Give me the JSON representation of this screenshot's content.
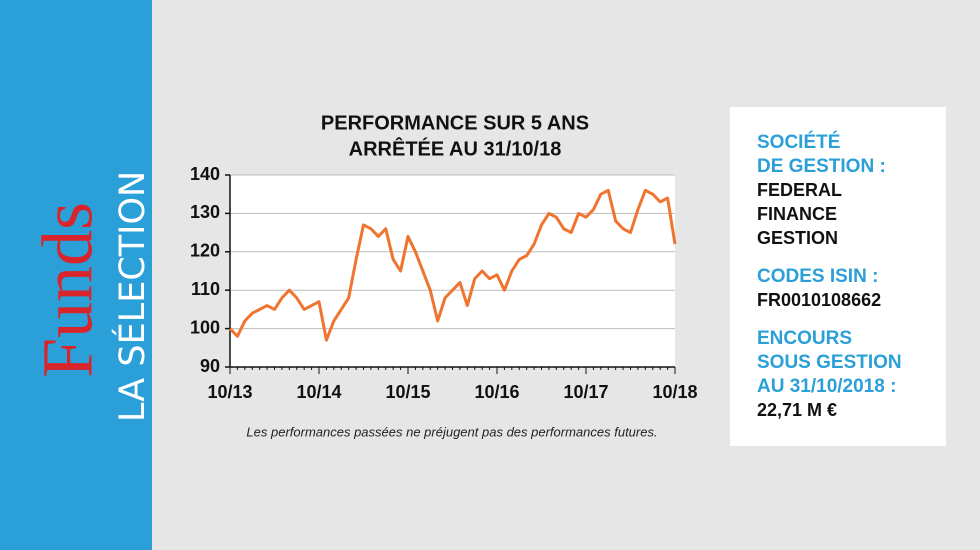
{
  "sidebar": {
    "brand": "Funds",
    "section": "LA SÉLECTION"
  },
  "chart_data": {
    "type": "line",
    "title": "PERFORMANCE SUR 5 ANS",
    "subtitle": "ARRÊTÉE AU 31/10/18",
    "note": "Les performances passées ne préjugent pas des performances futures.",
    "categories": [
      "10/13",
      null,
      null,
      null,
      null,
      null,
      null,
      null,
      null,
      null,
      null,
      null,
      "10/14",
      null,
      null,
      null,
      null,
      null,
      null,
      null,
      null,
      null,
      null,
      null,
      "10/15",
      null,
      null,
      null,
      null,
      null,
      null,
      null,
      null,
      null,
      null,
      null,
      "10/16",
      null,
      null,
      null,
      null,
      null,
      null,
      null,
      null,
      null,
      null,
      null,
      "10/17",
      null,
      null,
      null,
      null,
      null,
      null,
      null,
      null,
      null,
      null,
      null,
      "10/18"
    ],
    "series": [
      {
        "color": "#ef7430",
        "values": [
          100,
          98,
          102,
          104,
          105,
          106,
          105,
          108,
          110,
          108,
          105,
          106,
          107,
          97,
          102,
          105,
          108,
          118,
          127,
          126,
          124,
          126,
          118,
          115,
          124,
          120,
          115,
          110,
          102,
          108,
          110,
          112,
          106,
          113,
          115,
          113,
          114,
          110,
          115,
          118,
          119,
          122,
          127,
          130,
          129,
          126,
          125,
          130,
          129,
          131,
          135,
          136,
          128,
          126,
          125,
          131,
          136,
          135,
          133,
          134,
          122
        ]
      }
    ],
    "ylim": [
      90,
      140
    ],
    "yticks": [
      90,
      100,
      110,
      120,
      130,
      140
    ],
    "grid": true
  },
  "info": {
    "items": [
      {
        "label_lines": [
          "SOCIÉTÉ",
          "DE GESTION :"
        ],
        "value_lines": [
          "FEDERAL",
          "FINANCE",
          "GESTION"
        ]
      },
      {
        "label_lines": [
          "CODES ISIN :"
        ],
        "value_lines": [
          "FR0010108662"
        ]
      },
      {
        "label_lines": [
          "ENCOURS",
          "SOUS GESTION",
          "AU 31/10/2018 :"
        ],
        "value_lines": [
          "22,71 M €"
        ]
      }
    ]
  }
}
